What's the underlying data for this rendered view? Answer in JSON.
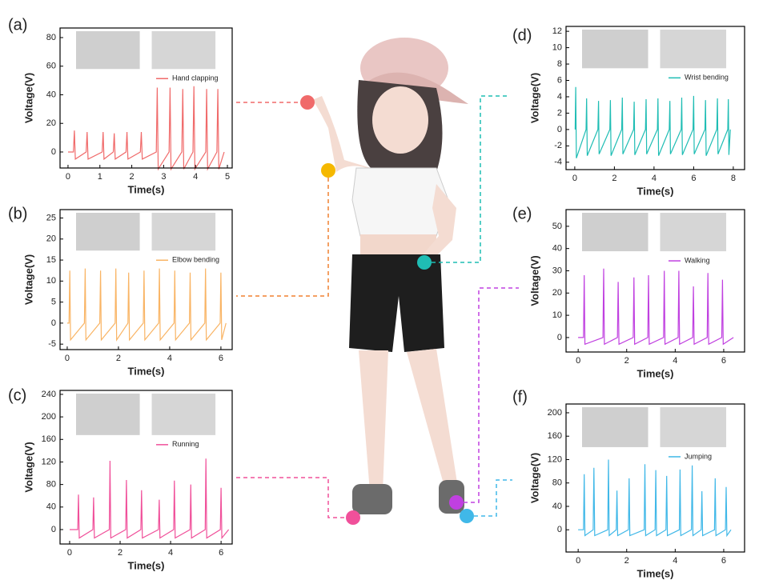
{
  "chart_data": [
    {
      "type": "line",
      "panel_label": "(a)",
      "xlabel": "Time(s)",
      "ylabel": "Voltage(V)",
      "xlim": [
        -0.25,
        5.15
      ],
      "ylim": [
        -11.2,
        86.7
      ],
      "xticks": [
        0,
        1,
        2,
        3,
        4,
        5
      ],
      "yticks": [
        0,
        20,
        40,
        60,
        80
      ],
      "x": [
        0,
        0.17,
        0.2,
        0.23,
        0.57,
        0.6,
        0.63,
        1.07,
        1.1,
        1.13,
        1.42,
        1.45,
        1.48,
        1.82,
        1.85,
        1.88,
        2.27,
        2.3,
        2.33,
        2.77,
        2.8,
        2.83,
        3.17,
        3.2,
        3.23,
        3.57,
        3.6,
        3.63,
        3.92,
        3.95,
        3.98,
        4.32,
        4.35,
        4.38,
        4.67,
        4.7,
        4.73,
        4.9
      ],
      "series": [
        {
          "name": "Hand clapping",
          "color": "#f06a6a",
          "values": [
            0,
            0,
            15,
            -5,
            0,
            14,
            -5,
            0,
            14,
            -5,
            0,
            13,
            -5,
            0,
            14,
            -5,
            0,
            14,
            -5,
            0,
            45,
            -12,
            0,
            45,
            -12,
            0,
            44,
            -12,
            0,
            46,
            -12,
            0,
            44,
            -12,
            0,
            44,
            -12,
            0
          ]
        }
      ]
    },
    {
      "type": "line",
      "panel_label": "(b)",
      "xlabel": "Time(s)",
      "ylabel": "Voltage(V)",
      "xlim": [
        -0.28,
        6.44
      ],
      "ylim": [
        -6.3,
        27
      ],
      "xticks": [
        0,
        2,
        4,
        6
      ],
      "yticks": [
        -5,
        0,
        5,
        10,
        15,
        20,
        25
      ],
      "x": [
        0,
        0.07,
        0.1,
        0.13,
        0.67,
        0.7,
        0.73,
        1.27,
        1.3,
        1.33,
        1.87,
        1.9,
        1.93,
        2.37,
        2.4,
        2.43,
        2.97,
        3,
        3.03,
        3.57,
        3.6,
        3.63,
        4.17,
        4.2,
        4.23,
        4.77,
        4.8,
        4.83,
        5.37,
        5.4,
        5.43,
        5.97,
        6,
        6.03,
        6.2
      ],
      "series": [
        {
          "name": "Elbow bending",
          "color": "#f9b464",
          "values": [
            0,
            0,
            12.5,
            -4,
            0,
            13,
            -4,
            0,
            12.5,
            -4,
            0,
            13,
            -4,
            0,
            12,
            -4,
            0,
            12.5,
            -4,
            0,
            13,
            -4,
            0,
            12.5,
            -4,
            0,
            12,
            -4,
            0,
            13,
            -4,
            0,
            12,
            -4,
            0
          ]
        }
      ]
    },
    {
      "type": "line",
      "panel_label": "(c)",
      "xlabel": "Time(s)",
      "ylabel": "Voltage(V)",
      "xlim": [
        -0.38,
        6.44
      ],
      "ylim": [
        -25.6,
        247
      ],
      "xticks": [
        0,
        2,
        4,
        6
      ],
      "yticks": [
        0,
        40,
        80,
        120,
        160,
        200,
        240
      ],
      "x": [
        0,
        0.32,
        0.35,
        0.38,
        0.92,
        0.95,
        0.98,
        1.57,
        1.6,
        1.63,
        2.22,
        2.25,
        2.28,
        2.82,
        2.85,
        2.88,
        3.52,
        3.55,
        3.58,
        4.12,
        4.15,
        4.18,
        4.77,
        4.8,
        4.83,
        5.37,
        5.4,
        5.43,
        5.97,
        6,
        6.03,
        6.3
      ],
      "series": [
        {
          "name": "Running",
          "color": "#f0509a",
          "values": [
            0,
            0,
            62,
            -15,
            0,
            57,
            -15,
            0,
            122,
            -15,
            0,
            88,
            -15,
            0,
            70,
            -15,
            0,
            53,
            -15,
            0,
            87,
            -15,
            0,
            80,
            -15,
            0,
            126,
            -15,
            0,
            74,
            -15,
            0
          ]
        }
      ]
    },
    {
      "type": "line",
      "panel_label": "(d)",
      "xlabel": "Time(s)",
      "ylabel": "Voltage(V)",
      "xlim": [
        -0.44,
        8.57
      ],
      "ylim": [
        -4.9,
        12.6
      ],
      "xticks": [
        0,
        2,
        4,
        6,
        8
      ],
      "yticks": [
        -4,
        -2,
        0,
        2,
        4,
        6,
        8,
        10,
        12
      ],
      "x": [
        0.02,
        0.05,
        0.08,
        0.57,
        0.6,
        0.63,
        1.17,
        1.2,
        1.23,
        1.77,
        1.8,
        1.83,
        2.37,
        2.4,
        2.43,
        2.97,
        3,
        3.03,
        3.57,
        3.6,
        3.63,
        4.17,
        4.2,
        4.23,
        4.77,
        4.8,
        4.83,
        5.37,
        5.4,
        5.43,
        5.97,
        6,
        6.03,
        6.57,
        6.6,
        6.63,
        7.17,
        7.2,
        7.23,
        7.72,
        7.75,
        7.78,
        7.85
      ],
      "series": [
        {
          "name": "Wrist bending",
          "color": "#1fbdb4",
          "values": [
            0,
            5.2,
            -3.5,
            0,
            3.8,
            -3.2,
            0,
            3.5,
            -3,
            0,
            3.6,
            -3.2,
            0,
            3.9,
            -3,
            0,
            3.4,
            -3.1,
            0,
            3.7,
            -3,
            0,
            3.8,
            -3.2,
            0,
            3.5,
            -3,
            0,
            3.9,
            -3.1,
            0,
            4.1,
            -3,
            0,
            3.6,
            -3.2,
            0,
            3.8,
            -3,
            0,
            3.7,
            -3.1,
            0
          ]
        }
      ]
    },
    {
      "type": "line",
      "panel_label": "(e)",
      "xlabel": "Time(s)",
      "ylabel": "Voltage(V)",
      "xlim": [
        -0.5,
        6.86
      ],
      "ylim": [
        -6.5,
        57.5
      ],
      "xticks": [
        0,
        2,
        4,
        6
      ],
      "yticks": [
        0,
        10,
        20,
        30,
        40,
        50
      ],
      "x": [
        0,
        0.22,
        0.25,
        0.28,
        1.02,
        1.05,
        1.08,
        1.62,
        1.65,
        1.68,
        2.27,
        2.3,
        2.33,
        2.87,
        2.9,
        2.93,
        3.52,
        3.55,
        3.58,
        4.12,
        4.15,
        4.18,
        4.72,
        4.75,
        4.78,
        5.32,
        5.35,
        5.38,
        5.92,
        5.95,
        5.98,
        6.4
      ],
      "series": [
        {
          "name": "Walking",
          "color": "#c040e0",
          "values": [
            0,
            0,
            28,
            -3,
            0,
            31,
            -3,
            0,
            25,
            -3,
            0,
            27,
            -3,
            0,
            28,
            -3,
            0,
            30,
            -3,
            0,
            30,
            -3,
            0,
            23,
            -3,
            0,
            29,
            -3,
            0,
            26,
            -3,
            0
          ]
        }
      ]
    },
    {
      "type": "line",
      "panel_label": "(f)",
      "xlabel": "Time(s)",
      "ylabel": "Voltage(V)",
      "xlim": [
        -0.5,
        6.86
      ],
      "ylim": [
        -38,
        215
      ],
      "xticks": [
        0,
        2,
        4,
        6
      ],
      "yticks": [
        0,
        40,
        80,
        120,
        160,
        200
      ],
      "x": [
        0,
        0.22,
        0.25,
        0.28,
        0.62,
        0.65,
        0.68,
        1.22,
        1.25,
        1.28,
        1.57,
        1.6,
        1.63,
        2.07,
        2.1,
        2.13,
        2.72,
        2.75,
        2.78,
        3.17,
        3.2,
        3.23,
        3.62,
        3.65,
        3.68,
        4.17,
        4.2,
        4.23,
        4.67,
        4.7,
        4.73,
        5.07,
        5.1,
        5.13,
        5.62,
        5.65,
        5.68,
        6.07,
        6.1,
        6.13,
        6.3
      ],
      "series": [
        {
          "name": "Jumping",
          "color": "#40b8e8",
          "values": [
            0,
            0,
            95,
            -10,
            0,
            106,
            -10,
            0,
            120,
            -10,
            0,
            67,
            -10,
            0,
            88,
            -10,
            0,
            112,
            -10,
            0,
            102,
            -10,
            0,
            92,
            -10,
            0,
            103,
            -10,
            0,
            110,
            -10,
            0,
            66,
            -10,
            0,
            88,
            -10,
            0,
            73,
            -10,
            0
          ]
        }
      ]
    }
  ]
}
